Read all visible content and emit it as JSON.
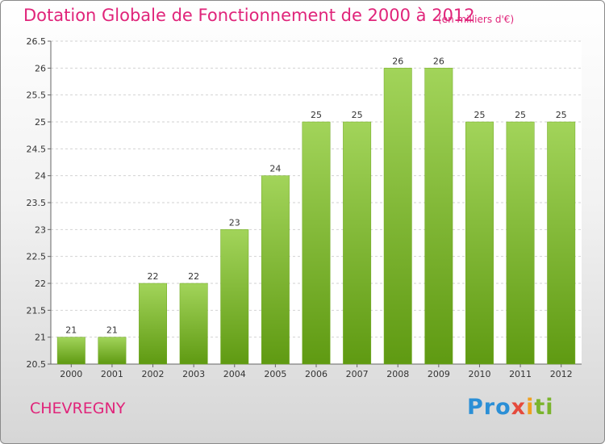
{
  "chart_data": {
    "type": "bar",
    "title": "Dotation Globale de Fonctionnement de 2000 à 2012",
    "subtitle": "(en milliers d'€)",
    "categories": [
      "2000",
      "2001",
      "2002",
      "2003",
      "2004",
      "2005",
      "2006",
      "2007",
      "2008",
      "2009",
      "2010",
      "2011",
      "2012"
    ],
    "values": [
      21,
      21,
      22,
      22,
      23,
      24,
      25,
      25,
      26,
      26,
      25,
      25,
      25
    ],
    "ylim": [
      20.5,
      26.5
    ],
    "yticks": [
      "20.5",
      "21",
      "21.5",
      "22",
      "22.5",
      "23",
      "23.5",
      "24",
      "24.5",
      "25",
      "25.5",
      "26",
      "26.5"
    ],
    "grid": true,
    "bar_color": "#7cb829"
  },
  "commune": "CHEVREGNY",
  "logo": [
    "Pro",
    "x",
    "i",
    "ti"
  ]
}
